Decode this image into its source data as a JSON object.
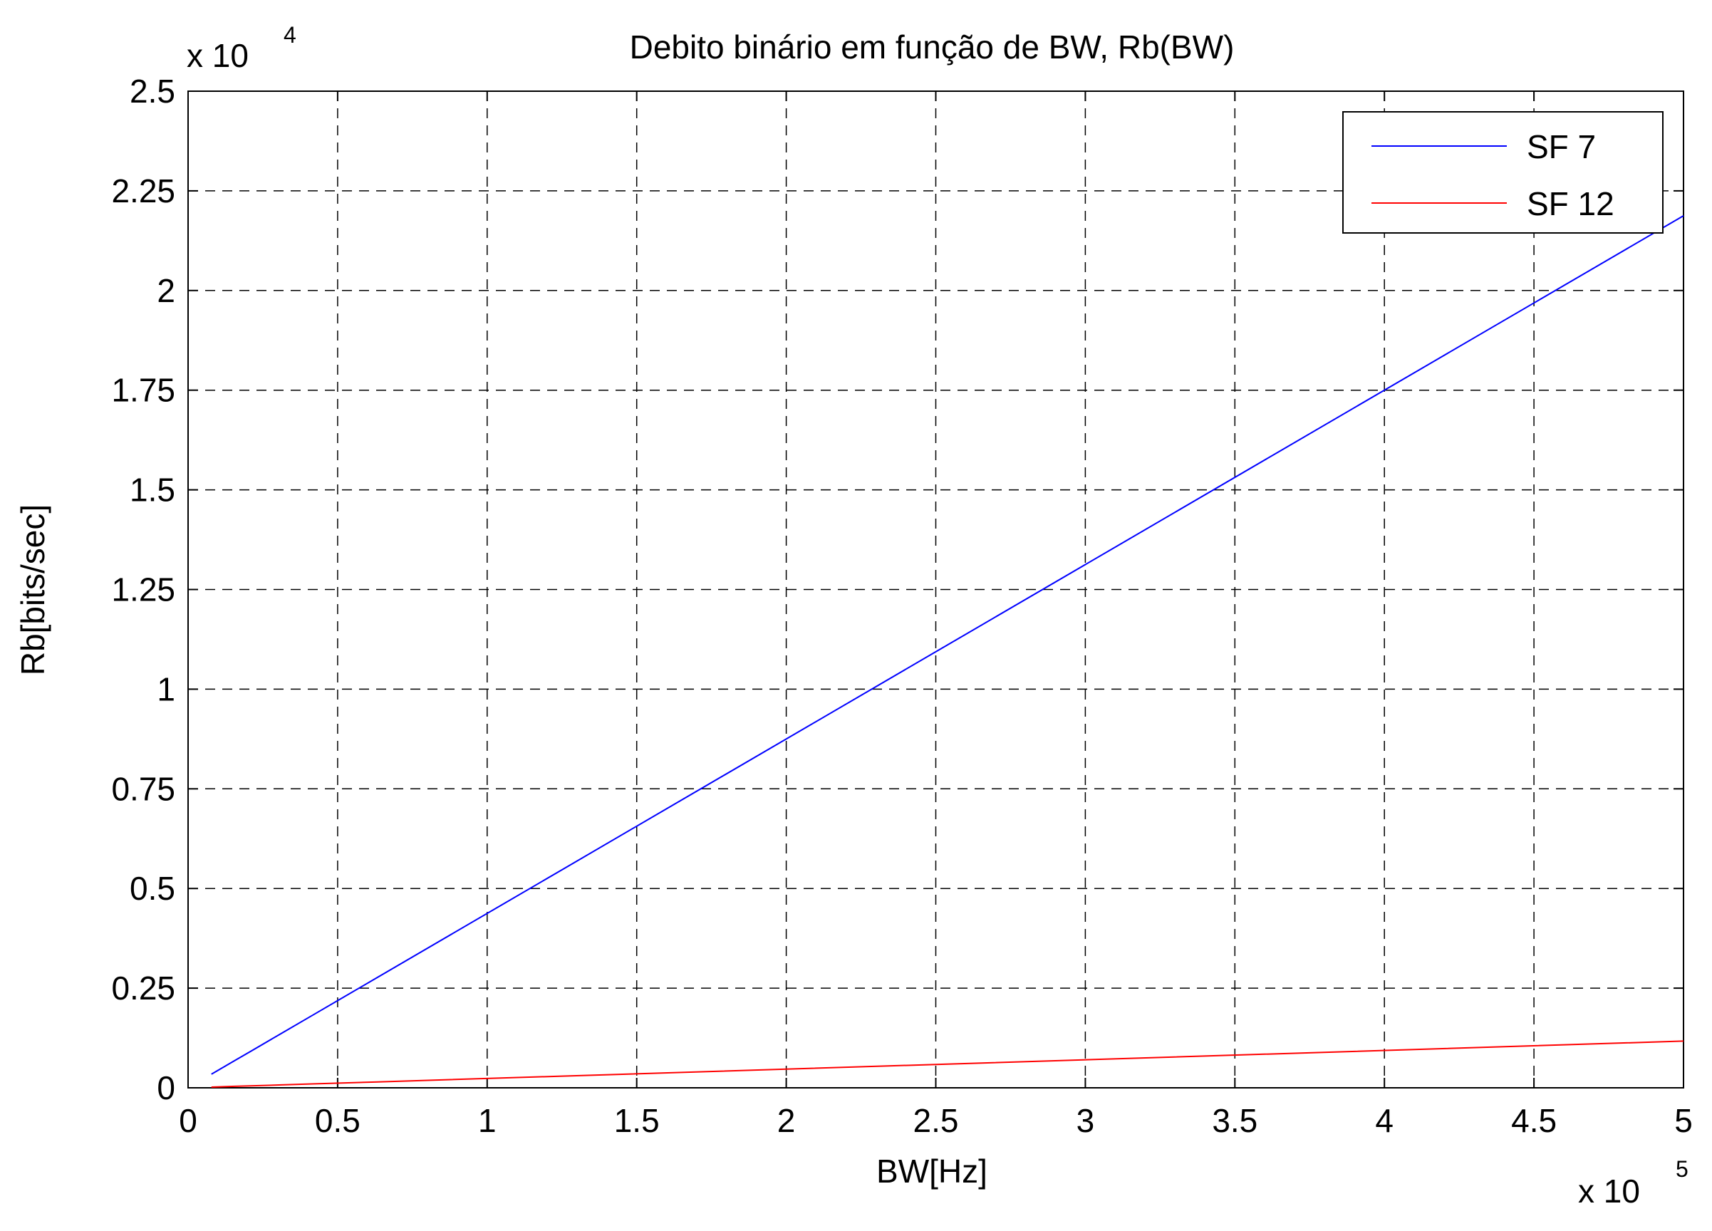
{
  "chart_data": {
    "type": "line",
    "title": "Debito binário em função de BW, Rb(BW)",
    "x_label": "BW[Hz]",
    "y_label": "Rb[bits/sec]",
    "x_multiplier": "x 10",
    "x_exponent": "5",
    "y_multiplier": "x 10",
    "y_exponent": "4",
    "x": [
      0.078,
      0.104,
      0.156,
      0.208,
      0.3125,
      0.417,
      0.625,
      1.25,
      2.5,
      5
    ],
    "series": [
      {
        "name": "SF 7",
        "color": "#0000ff",
        "values": [
          0.0341,
          0.0455,
          0.0683,
          0.091,
          0.1367,
          0.1824,
          0.2734,
          0.5469,
          1.0938,
          2.1875
        ]
      },
      {
        "name": "SF 12",
        "color": "#ff0000",
        "values": [
          0.0018,
          0.0024,
          0.0037,
          0.0049,
          0.0073,
          0.0098,
          0.0146,
          0.0293,
          0.0586,
          0.1172
        ]
      }
    ],
    "xlim": [
      0,
      5
    ],
    "xticks": [
      0,
      0.5,
      1,
      1.5,
      2,
      2.5,
      3,
      3.5,
      4,
      4.5,
      5
    ],
    "ylim": [
      0,
      2.5
    ],
    "yticks": [
      0,
      0.25,
      0.5,
      0.75,
      1,
      1.25,
      1.5,
      1.75,
      2,
      2.25,
      2.5
    ],
    "grid": true,
    "legend": "upper right"
  }
}
